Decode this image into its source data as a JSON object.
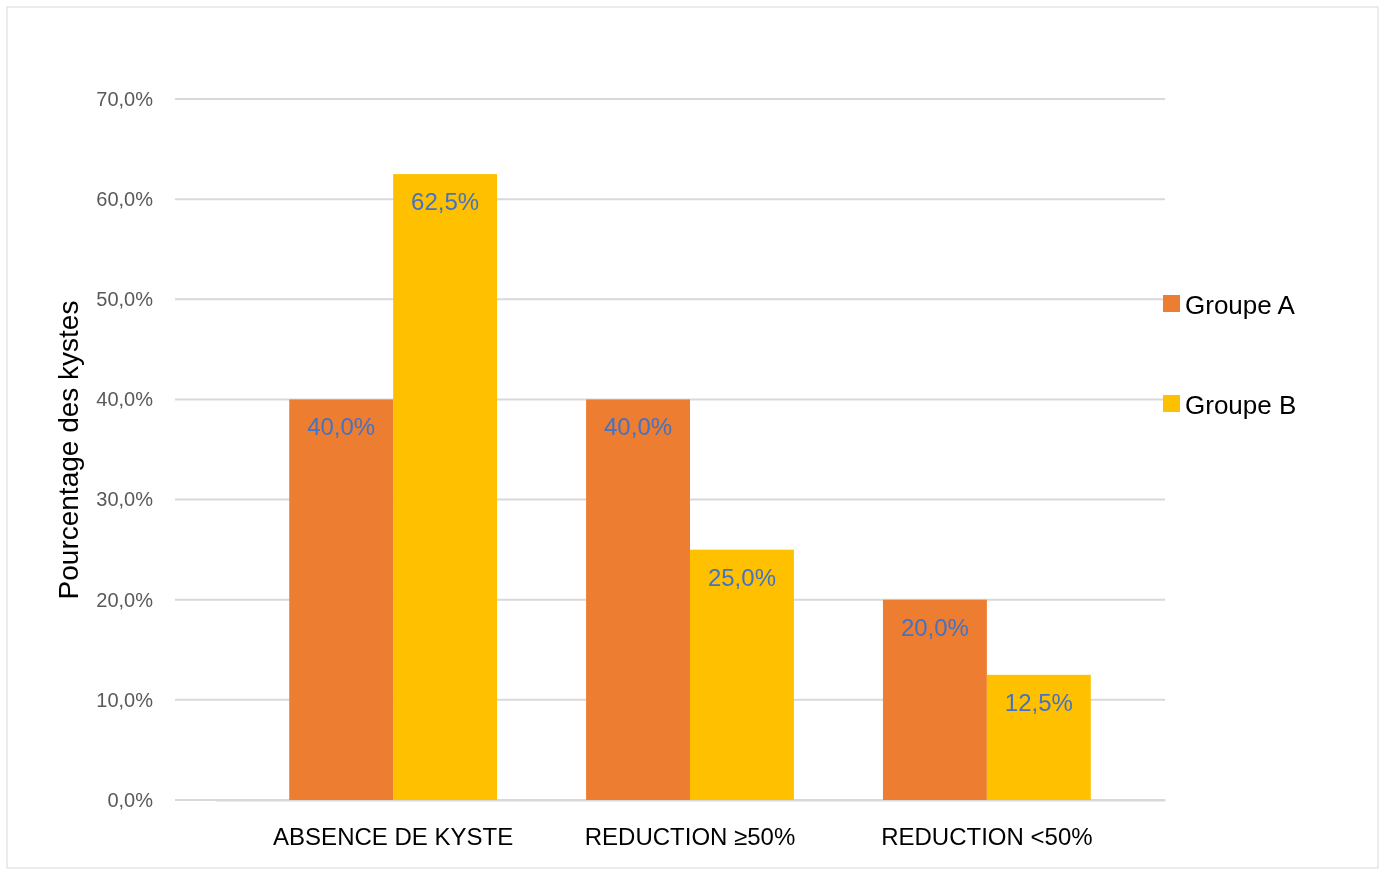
{
  "chart_data": {
    "type": "bar",
    "ylabel": "Pourcentage des kystes",
    "categories": [
      "ABSENCE DE KYSTE",
      "REDUCTION ≥50%",
      "REDUCTION <50%"
    ],
    "series": [
      {
        "name": "Groupe A",
        "color": "#ed7d31",
        "values": [
          40,
          40,
          20
        ],
        "value_labels": [
          "40,0%",
          "40,0%",
          "20,0%"
        ]
      },
      {
        "name": "Groupe B",
        "color": "#ffc000",
        "values": [
          62.5,
          25,
          12.5
        ],
        "value_labels": [
          "62,5%",
          "25,0%",
          "12,5%"
        ]
      }
    ],
    "ylim": [
      0,
      70
    ],
    "yticks": [
      {
        "value": 0,
        "label": "0,0%"
      },
      {
        "value": 10,
        "label": "10,0%"
      },
      {
        "value": 20,
        "label": "20,0%"
      },
      {
        "value": 30,
        "label": "30,0%"
      },
      {
        "value": 40,
        "label": "40,0%"
      },
      {
        "value": 50,
        "label": "50,0%"
      },
      {
        "value": 60,
        "label": "60,0%"
      },
      {
        "value": 70,
        "label": "70,0%"
      }
    ],
    "grid": "y",
    "legend": "right"
  }
}
